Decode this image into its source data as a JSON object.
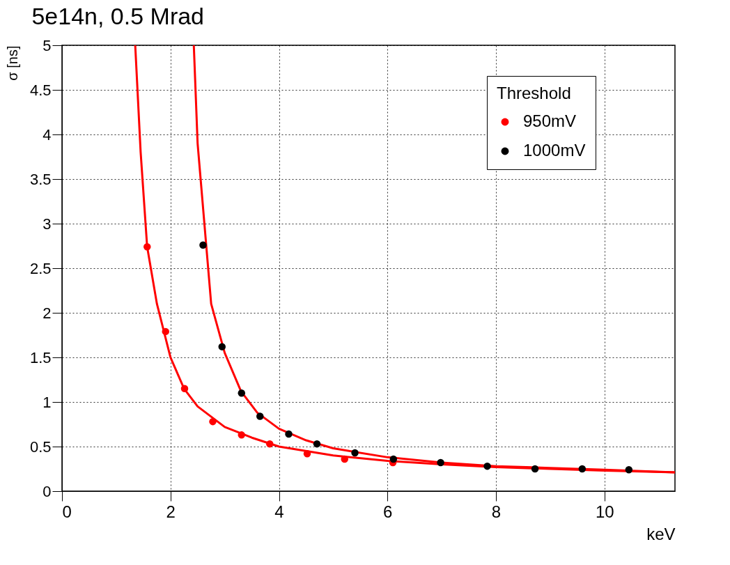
{
  "chart_data": {
    "type": "scatter",
    "title": "5e14n, 0.5 Mrad",
    "xlabel": "keV",
    "ylabel": "σ [ns]",
    "legend_title": "Threshold",
    "xlim": [
      0,
      11.3
    ],
    "ylim": [
      0,
      5
    ],
    "xticks": [
      0,
      2,
      4,
      6,
      8,
      10
    ],
    "yticks": [
      0,
      0.5,
      1,
      1.5,
      2,
      2.5,
      3,
      3.5,
      4,
      4.5,
      5
    ],
    "grid": true,
    "legend": "top right",
    "marker": "circle",
    "series": [
      {
        "name": "950mV",
        "color": "#ff0000",
        "x": [
          1.57,
          1.91,
          2.26,
          2.78,
          3.31,
          3.83,
          4.52,
          5.21,
          6.1
        ],
        "values": [
          2.74,
          1.79,
          1.15,
          0.78,
          0.63,
          0.53,
          0.42,
          0.36,
          0.32
        ]
      },
      {
        "name": "1000mV",
        "color": "#000000",
        "x": [
          2.6,
          2.95,
          3.31,
          3.65,
          4.18,
          4.7,
          5.4,
          6.11,
          6.98,
          7.84,
          8.72,
          9.59,
          10.45
        ],
        "values": [
          2.76,
          1.62,
          1.1,
          0.84,
          0.64,
          0.53,
          0.43,
          0.36,
          0.32,
          0.28,
          0.25,
          0.25,
          0.24
        ]
      },
      {
        "type": "line",
        "marker": "none",
        "color": "#ff0000",
        "line_style": "solid",
        "x": [
          1.35,
          1.45,
          1.57,
          1.75,
          2,
          2.25,
          2.5,
          3,
          3.5,
          4,
          5,
          6,
          7,
          8,
          9,
          10,
          11.3
        ],
        "values": [
          5,
          3.8,
          2.74,
          2.1,
          1.5,
          1.15,
          0.95,
          0.72,
          0.6,
          0.5,
          0.4,
          0.34,
          0.3,
          0.27,
          0.25,
          0.23,
          0.21
        ]
      },
      {
        "type": "line",
        "marker": "none",
        "color": "#ff0000",
        "line_style": "solid",
        "x": [
          2.43,
          2.5,
          2.75,
          3,
          3.3,
          3.6,
          4,
          4.5,
          5,
          6,
          7,
          8,
          9,
          10,
          11.3
        ],
        "values": [
          5,
          3.9,
          2.1,
          1.55,
          1.12,
          0.88,
          0.7,
          0.57,
          0.48,
          0.38,
          0.32,
          0.28,
          0.26,
          0.24,
          0.21
        ]
      }
    ]
  }
}
